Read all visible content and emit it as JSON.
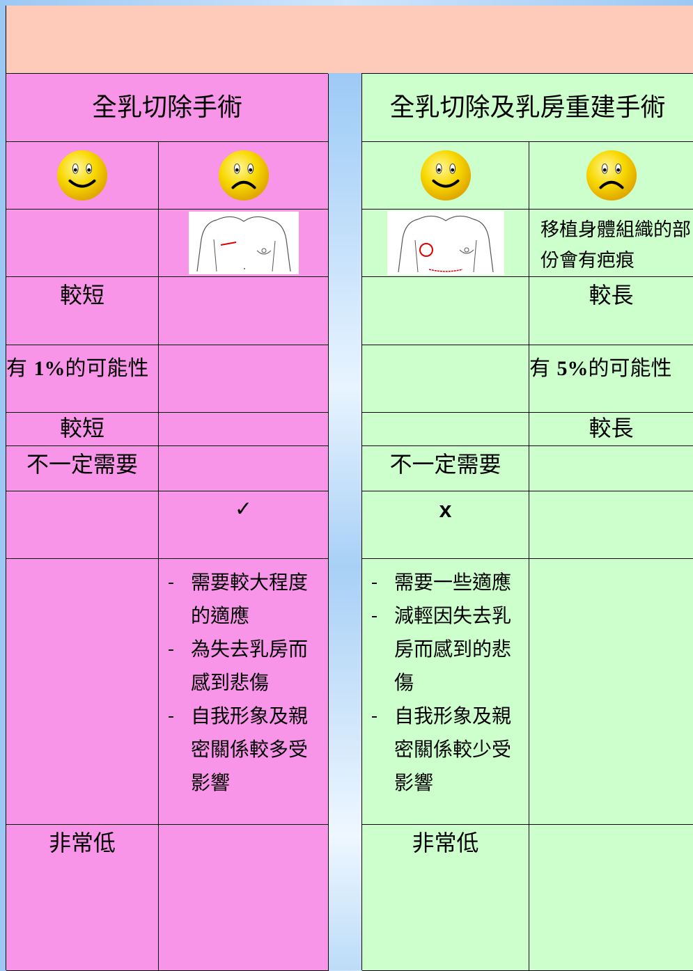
{
  "mastectomy": {
    "title": "全乳切除手術",
    "recovery_time": "較短",
    "risk": {
      "prefix": "有 ",
      "rate": "1%",
      "suffix": "的可能性"
    },
    "hospital_stay": "較短",
    "further_surgery": "不一定需要",
    "prosthesis": "✓",
    "emotional_impact": [
      "需要較大程度的適應",
      "為失去乳房而感到悲傷",
      "自我形象及親密關係較多受影響"
    ],
    "recurrence": "非常低"
  },
  "reconstruction": {
    "title": "全乳切除及乳房重建手術",
    "scar_note": "移植身體組織的部份會有疤痕",
    "recovery_time": "較長",
    "risk": {
      "prefix": "有 ",
      "rate": "5%",
      "suffix": "的可能性"
    },
    "hospital_stay": "較長",
    "further_surgery": "不一定需要",
    "prosthesis": "x",
    "emotional_impact": [
      "需要一些適應",
      "減輕因失去乳房而感到的悲傷",
      "自我形象及親密關係較少受影響"
    ],
    "recurrence": "非常低"
  }
}
